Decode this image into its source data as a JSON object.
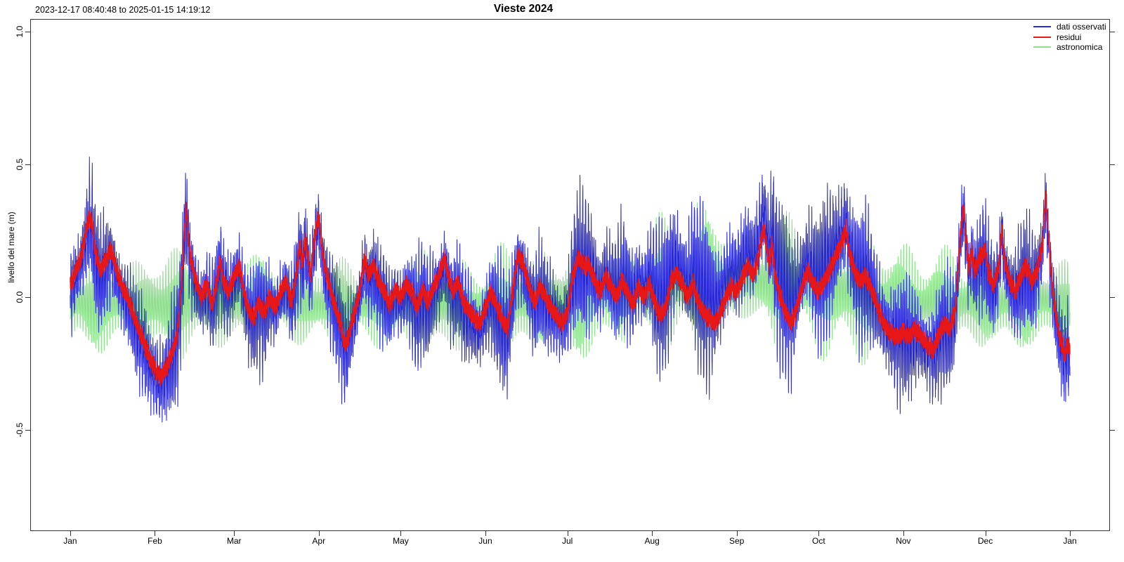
{
  "figure": {
    "title": "Vieste 2024",
    "subtitle": "2023-12-17 08:40:48 to 2025-01-15 14:19:12",
    "y_axis_label": "livello del mare (m)"
  },
  "legend": {
    "items": [
      {
        "label": "dati osservati",
        "color": "#2a2ad4"
      },
      {
        "label": "residui",
        "color": "#e81717"
      },
      {
        "label": "astronomica",
        "color": "#8fdf8f"
      }
    ]
  },
  "chart_data": {
    "type": "line",
    "title": "Vieste 2024",
    "subtitle": "2023-12-17 08:40:48 to 2025-01-15 14:19:12",
    "xlabel": "",
    "ylabel": "livello del mare (m)",
    "grid": false,
    "legend_position": "top-right",
    "x_domain_days_rel_2024jan1": [
      -14.64,
      380.64
    ],
    "ylim": [
      -0.881,
      1.048
    ],
    "y_ticks": [
      {
        "value": 1.0,
        "label": "1.0"
      },
      {
        "value": 0.5,
        "label": "0.5"
      },
      {
        "value": 0.0,
        "label": "0.0"
      },
      {
        "value": -0.5,
        "label": "-0.5"
      }
    ],
    "x_ticks": [
      {
        "label": "Jan",
        "day": 0
      },
      {
        "label": "Feb",
        "day": 31
      },
      {
        "label": "Mar",
        "day": 60
      },
      {
        "label": "Apr",
        "day": 91
      },
      {
        "label": "May",
        "day": 121
      },
      {
        "label": "Jun",
        "day": 152
      },
      {
        "label": "Jul",
        "day": 182
      },
      {
        "label": "Aug",
        "day": 213
      },
      {
        "label": "Sep",
        "day": 244
      },
      {
        "label": "Oct",
        "day": 274
      },
      {
        "label": "Nov",
        "day": 305
      },
      {
        "label": "Dec",
        "day": 335
      },
      {
        "label": "Jan",
        "day": 366
      }
    ],
    "series": [
      {
        "name": "dati osservati",
        "color": "#2a2ad4",
        "role": "observed sea level",
        "definition": "astronomica + residui + high-frequency noise"
      },
      {
        "name": "residui",
        "color": "#e81717",
        "role": "residual (observed minus astronomical)"
      },
      {
        "name": "astronomica",
        "color": "#8fdf8f",
        "role": "astronomical tide prediction"
      }
    ],
    "data_span_days": [
      0,
      366
    ],
    "residui_points_day_value_m": [
      [
        0,
        0.04
      ],
      [
        2,
        0.1
      ],
      [
        4,
        0.15
      ],
      [
        6,
        0.26
      ],
      [
        7,
        0.3
      ],
      [
        8,
        0.28
      ],
      [
        9,
        0.18
      ],
      [
        11,
        0.1
      ],
      [
        13,
        0.14
      ],
      [
        15,
        0.18
      ],
      [
        17,
        0.1
      ],
      [
        19,
        0.04
      ],
      [
        21,
        0.0
      ],
      [
        23,
        -0.06
      ],
      [
        25,
        -0.12
      ],
      [
        27,
        -0.17
      ],
      [
        29,
        -0.23
      ],
      [
        31,
        -0.27
      ],
      [
        33,
        -0.3
      ],
      [
        35,
        -0.27
      ],
      [
        37,
        -0.22
      ],
      [
        39,
        -0.15
      ],
      [
        40,
        -0.05
      ],
      [
        41,
        0.1
      ],
      [
        42,
        0.28
      ],
      [
        42.5,
        0.34
      ],
      [
        43,
        0.26
      ],
      [
        44,
        0.15
      ],
      [
        46,
        0.06
      ],
      [
        48,
        0.0
      ],
      [
        50,
        0.05
      ],
      [
        52,
        -0.03
      ],
      [
        54,
        0.08
      ],
      [
        55,
        0.14
      ],
      [
        56,
        0.06
      ],
      [
        58,
        0.02
      ],
      [
        60,
        0.08
      ],
      [
        62,
        0.12
      ],
      [
        63,
        0.05
      ],
      [
        65,
        -0.04
      ],
      [
        67,
        -0.08
      ],
      [
        69,
        -0.02
      ],
      [
        71,
        -0.06
      ],
      [
        73,
        0.0
      ],
      [
        75,
        -0.04
      ],
      [
        77,
        0.02
      ],
      [
        79,
        0.06
      ],
      [
        81,
        -0.02
      ],
      [
        83,
        0.1
      ],
      [
        84,
        0.2
      ],
      [
        85,
        0.12
      ],
      [
        86,
        0.22
      ],
      [
        87,
        0.15
      ],
      [
        88,
        0.08
      ],
      [
        89,
        0.18
      ],
      [
        90,
        0.26
      ],
      [
        91,
        0.3
      ],
      [
        92,
        0.2
      ],
      [
        93,
        0.12
      ],
      [
        95,
        0.04
      ],
      [
        97,
        -0.04
      ],
      [
        99,
        -0.1
      ],
      [
        100,
        -0.16
      ],
      [
        101,
        -0.18
      ],
      [
        102,
        -0.14
      ],
      [
        104,
        -0.06
      ],
      [
        106,
        0.02
      ],
      [
        107,
        0.1
      ],
      [
        108,
        0.15
      ],
      [
        109,
        0.08
      ],
      [
        111,
        0.12
      ],
      [
        113,
        0.06
      ],
      [
        115,
        0.02
      ],
      [
        117,
        -0.03
      ],
      [
        119,
        0.03
      ],
      [
        121,
        0.0
      ],
      [
        123,
        0.05
      ],
      [
        125,
        0.02
      ],
      [
        127,
        -0.04
      ],
      [
        129,
        0.03
      ],
      [
        131,
        -0.02
      ],
      [
        133,
        0.04
      ],
      [
        135,
        0.08
      ],
      [
        137,
        0.15
      ],
      [
        138,
        0.1
      ],
      [
        140,
        0.02
      ],
      [
        142,
        0.06
      ],
      [
        144,
        -0.02
      ],
      [
        146,
        -0.05
      ],
      [
        148,
        -0.08
      ],
      [
        150,
        -0.1
      ],
      [
        152,
        -0.04
      ],
      [
        154,
        0.02
      ],
      [
        156,
        -0.03
      ],
      [
        158,
        -0.08
      ],
      [
        160,
        -0.12
      ],
      [
        162,
        0.02
      ],
      [
        163,
        0.1
      ],
      [
        164,
        0.16
      ],
      [
        166,
        0.12
      ],
      [
        168,
        0.04
      ],
      [
        170,
        -0.02
      ],
      [
        172,
        0.04
      ],
      [
        174,
        0.0
      ],
      [
        176,
        -0.04
      ],
      [
        178,
        -0.07
      ],
      [
        180,
        -0.1
      ],
      [
        182,
        -0.06
      ],
      [
        184,
        0.08
      ],
      [
        186,
        0.15
      ],
      [
        188,
        0.12
      ],
      [
        190,
        0.12
      ],
      [
        192,
        0.06
      ],
      [
        194,
        0.02
      ],
      [
        196,
        0.08
      ],
      [
        198,
        0.04
      ],
      [
        200,
        0.0
      ],
      [
        202,
        0.06
      ],
      [
        204,
        0.02
      ],
      [
        206,
        -0.03
      ],
      [
        208,
        0.04
      ],
      [
        210,
        0.0
      ],
      [
        212,
        0.05
      ],
      [
        214,
        -0.02
      ],
      [
        216,
        -0.07
      ],
      [
        218,
        -0.04
      ],
      [
        220,
        0.06
      ],
      [
        222,
        0.09
      ],
      [
        224,
        0.05
      ],
      [
        226,
        0.0
      ],
      [
        228,
        0.05
      ],
      [
        230,
        -0.02
      ],
      [
        232,
        -0.06
      ],
      [
        234,
        -0.08
      ],
      [
        236,
        -0.1
      ],
      [
        238,
        -0.06
      ],
      [
        240,
        0.0
      ],
      [
        242,
        0.04
      ],
      [
        244,
        0.02
      ],
      [
        246,
        0.07
      ],
      [
        248,
        0.12
      ],
      [
        250,
        0.08
      ],
      [
        252,
        0.15
      ],
      [
        253,
        0.22
      ],
      [
        254,
        0.26
      ],
      [
        255,
        0.18
      ],
      [
        256,
        0.12
      ],
      [
        257,
        0.2
      ],
      [
        258,
        0.08
      ],
      [
        260,
        0.0
      ],
      [
        262,
        -0.06
      ],
      [
        264,
        -0.1
      ],
      [
        266,
        -0.04
      ],
      [
        268,
        0.04
      ],
      [
        270,
        0.1
      ],
      [
        272,
        0.05
      ],
      [
        274,
        0.02
      ],
      [
        276,
        0.06
      ],
      [
        278,
        0.1
      ],
      [
        280,
        0.15
      ],
      [
        283,
        0.22
      ],
      [
        284,
        0.26
      ],
      [
        285,
        0.18
      ],
      [
        287,
        0.1
      ],
      [
        289,
        0.06
      ],
      [
        291,
        0.08
      ],
      [
        293,
        0.04
      ],
      [
        295,
        -0.02
      ],
      [
        297,
        -0.08
      ],
      [
        299,
        -0.12
      ],
      [
        301,
        -0.14
      ],
      [
        303,
        -0.15
      ],
      [
        305,
        -0.13
      ],
      [
        307,
        -0.15
      ],
      [
        309,
        -0.12
      ],
      [
        311,
        -0.14
      ],
      [
        313,
        -0.17
      ],
      [
        315,
        -0.19
      ],
      [
        316,
        -0.2
      ],
      [
        318,
        -0.14
      ],
      [
        320,
        -0.1
      ],
      [
        322,
        -0.12
      ],
      [
        324,
        -0.05
      ],
      [
        325,
        0.1
      ],
      [
        326,
        0.25
      ],
      [
        327,
        0.34
      ],
      [
        328,
        0.22
      ],
      [
        329,
        0.1
      ],
      [
        330,
        0.18
      ],
      [
        331,
        0.1
      ],
      [
        333,
        0.15
      ],
      [
        335,
        0.18
      ],
      [
        336,
        0.1
      ],
      [
        338,
        0.04
      ],
      [
        340,
        0.12
      ],
      [
        341,
        0.26
      ],
      [
        342,
        0.14
      ],
      [
        344,
        0.06
      ],
      [
        346,
        0.02
      ],
      [
        348,
        0.08
      ],
      [
        350,
        0.12
      ],
      [
        352,
        0.06
      ],
      [
        354,
        0.1
      ],
      [
        356,
        0.2
      ],
      [
        357,
        0.38
      ],
      [
        358,
        0.25
      ],
      [
        359,
        0.1
      ],
      [
        360,
        0.0
      ],
      [
        361,
        -0.08
      ],
      [
        362,
        -0.14
      ],
      [
        363,
        -0.18
      ],
      [
        364,
        -0.22
      ],
      [
        365,
        -0.18
      ],
      [
        366,
        -0.2
      ]
    ],
    "astro_envelope_day_amplitude_m": [
      [
        0,
        0.12
      ],
      [
        2.6,
        0.08
      ],
      [
        10,
        0.19
      ],
      [
        17.4,
        0.08
      ],
      [
        24.8,
        0.15
      ],
      [
        32.2,
        0.1
      ],
      [
        39.5,
        0.2
      ],
      [
        46.9,
        0.08
      ],
      [
        54.3,
        0.15
      ],
      [
        61.7,
        0.09
      ],
      [
        69.1,
        0.19
      ],
      [
        76.5,
        0.07
      ],
      [
        83.8,
        0.14
      ],
      [
        91.2,
        0.08
      ],
      [
        98.6,
        0.18
      ],
      [
        106,
        0.07
      ],
      [
        113.4,
        0.15
      ],
      [
        120.8,
        0.08
      ],
      [
        128.1,
        0.2
      ],
      [
        135.5,
        0.09
      ],
      [
        142.9,
        0.16
      ],
      [
        150.3,
        0.08
      ],
      [
        157.6,
        0.21
      ],
      [
        165,
        0.09
      ],
      [
        172.4,
        0.17
      ],
      [
        179.8,
        0.09
      ],
      [
        187.2,
        0.24
      ],
      [
        194.5,
        0.1
      ],
      [
        201.9,
        0.19
      ],
      [
        209.3,
        0.1
      ],
      [
        216.7,
        0.26
      ],
      [
        224.1,
        0.11
      ],
      [
        231.5,
        0.3
      ],
      [
        238.9,
        0.12
      ],
      [
        246.2,
        0.13
      ],
      [
        253.6,
        0.11
      ],
      [
        261,
        0.3
      ],
      [
        268.4,
        0.11
      ],
      [
        275.7,
        0.25
      ],
      [
        283.1,
        0.12
      ],
      [
        290.5,
        0.24
      ],
      [
        297.9,
        0.1
      ],
      [
        305.3,
        0.21
      ],
      [
        312.6,
        0.09
      ],
      [
        320,
        0.2
      ],
      [
        327.4,
        0.08
      ],
      [
        334.8,
        0.17
      ],
      [
        342.1,
        0.08
      ],
      [
        349.6,
        0.19
      ],
      [
        356.9,
        0.08
      ],
      [
        364.3,
        0.14
      ],
      [
        366,
        0.13
      ]
    ],
    "astro_center_day_value_m": [
      [
        0,
        -0.02
      ],
      [
        30,
        -0.03
      ],
      [
        60,
        -0.02
      ],
      [
        90,
        -0.02
      ],
      [
        120,
        -0.03
      ],
      [
        150,
        -0.04
      ],
      [
        180,
        -0.01
      ],
      [
        200,
        0.02
      ],
      [
        215,
        0.04
      ],
      [
        230,
        0.06
      ],
      [
        250,
        0.07
      ],
      [
        265,
        0.06
      ],
      [
        280,
        0.04
      ],
      [
        295,
        0.0
      ],
      [
        310,
        -0.03
      ],
      [
        325,
        -0.02
      ],
      [
        340,
        -0.02
      ],
      [
        355,
        -0.01
      ],
      [
        366,
        -0.02
      ]
    ],
    "tide_synthesis": {
      "semidiurnal_period_days": 0.51753,
      "diurnal_period_days": 0.99727,
      "semidiurnal_weight": 0.82,
      "diurnal_weight": 0.33,
      "semidiurnal_phase_days": 0.3,
      "diurnal_phase_days": 0.1,
      "sample_step_days": 0.02
    }
  }
}
